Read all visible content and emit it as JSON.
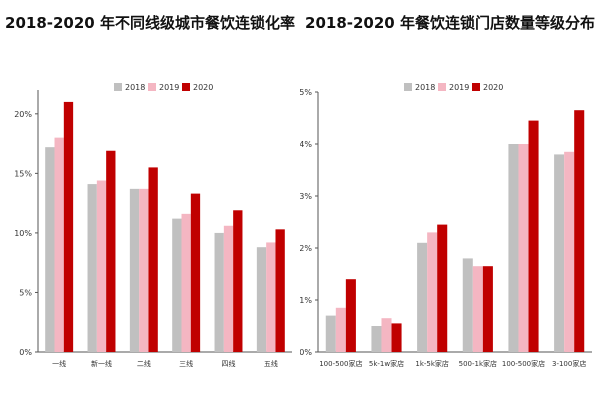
{
  "chart_data": [
    {
      "type": "bar",
      "title": "2018-2020 年不同线级城市餐饮连锁化率",
      "categories": [
        "一线",
        "新一线",
        "二线",
        "三线",
        "四线",
        "五线"
      ],
      "series": [
        {
          "name": "2018",
          "values": [
            17.2,
            14.1,
            13.7,
            11.2,
            10.0,
            8.8
          ]
        },
        {
          "name": "2019",
          "values": [
            18.0,
            14.4,
            13.7,
            11.6,
            10.6,
            9.2
          ]
        },
        {
          "name": "2020",
          "values": [
            21.0,
            16.9,
            15.5,
            13.3,
            11.9,
            10.3
          ]
        }
      ],
      "colors": [
        "#c0c0c0",
        "#f4b6c2",
        "#c00000"
      ],
      "ylim": [
        0,
        22
      ],
      "yticks": [
        0,
        5,
        10,
        15,
        20
      ],
      "ytick_labels": [
        "0%",
        "5%",
        "10%",
        "15%",
        "20%"
      ],
      "legend": "top-center",
      "grid": false
    },
    {
      "type": "bar",
      "title": "2018-2020 年餐饮连锁门店数量等级分布",
      "categories": [
        "100-500家店",
        "5k-1w家店",
        "1k-5k家店",
        "500-1k家店",
        "100-500家店",
        "3-100家店"
      ],
      "series": [
        {
          "name": "2018",
          "values": [
            0.7,
            0.5,
            2.1,
            1.8,
            4.0,
            3.8
          ]
        },
        {
          "name": "2019",
          "values": [
            0.85,
            0.65,
            2.3,
            1.65,
            4.0,
            3.85
          ]
        },
        {
          "name": "2020",
          "values": [
            1.4,
            0.55,
            2.45,
            1.65,
            4.45,
            4.65
          ]
        }
      ],
      "colors": [
        "#c0c0c0",
        "#f4b6c2",
        "#c00000"
      ],
      "ylim": [
        0,
        5
      ],
      "yticks": [
        0,
        1,
        2,
        3,
        4,
        5
      ],
      "ytick_labels": [
        "0%",
        "1%",
        "2%",
        "3%",
        "4%",
        "5%"
      ],
      "legend": "top-center",
      "grid": false
    }
  ]
}
